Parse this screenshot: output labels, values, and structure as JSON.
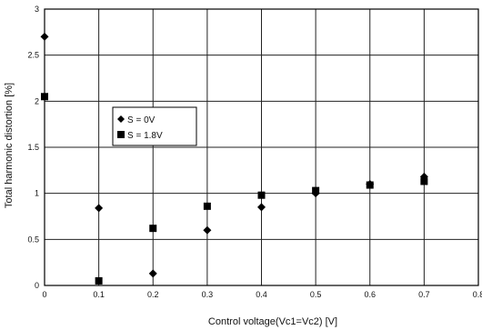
{
  "chart_data": {
    "type": "scatter",
    "title": "",
    "xlabel": "Control voltage(Vc1=Vc2) [V]",
    "ylabel": "Total harmonic distortion [%]",
    "xlim": [
      0,
      0.8
    ],
    "ylim": [
      0,
      3
    ],
    "xticks": [
      "0",
      "0.1",
      "0.2",
      "0.3",
      "0.4",
      "0.5",
      "0.6",
      "0.7",
      "0.8"
    ],
    "yticks": [
      "0",
      "0.5",
      "1",
      "1.5",
      "2",
      "2.5",
      "3"
    ],
    "grid": true,
    "legend_position": "upper-left",
    "series": [
      {
        "name": "S = 0V",
        "marker": "diamond",
        "color": "#000000",
        "x": [
          0,
          0.1,
          0.2,
          0.3,
          0.4,
          0.5,
          0.6,
          0.7
        ],
        "y": [
          2.7,
          0.84,
          0.13,
          0.6,
          0.85,
          1.0,
          1.1,
          1.18
        ]
      },
      {
        "name": "S = 1.8V",
        "marker": "square",
        "color": "#000000",
        "x": [
          0,
          0.1,
          0.2,
          0.3,
          0.4,
          0.5,
          0.6,
          0.7
        ],
        "y": [
          2.05,
          0.05,
          0.62,
          0.86,
          0.98,
          1.03,
          1.09,
          1.13
        ]
      }
    ]
  }
}
